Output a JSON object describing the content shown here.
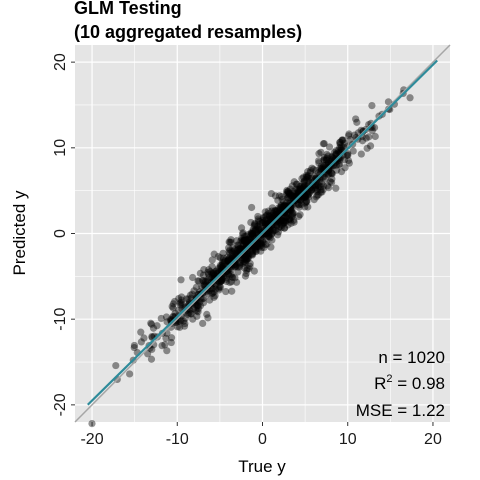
{
  "chart_data": {
    "type": "scatter",
    "title_line1": "GLM Testing",
    "title_line2": "(10 aggregated resamples)",
    "xlabel": "True y",
    "ylabel": "Predicted y",
    "xlim": [
      -22,
      22
    ],
    "ylim": [
      -22,
      22
    ],
    "x_ticks": [
      -20,
      -10,
      0,
      10,
      20
    ],
    "y_ticks": [
      -20,
      -10,
      0,
      10,
      20
    ],
    "x_tick_labels": [
      "-20",
      "-10",
      "0",
      "10",
      "20"
    ],
    "y_tick_labels": [
      "-20",
      "-10",
      "0",
      "10",
      "20"
    ],
    "grid": true,
    "n_points": 1020,
    "identity_line": {
      "slope": 1,
      "intercept": 0
    },
    "fit_line": {
      "slope": 0.98,
      "intercept": 0.1
    },
    "annotation_n": "n = 1020",
    "annotation_r2_prefix": "R",
    "annotation_r2_sup": "2",
    "annotation_r2_value": " = 0.98",
    "annotation_mse": "MSE = 1.22",
    "colors": {
      "panel": "#e5e5e5",
      "grid": "#ffffff",
      "points": "#000000",
      "identity_line": "#a6a6a6",
      "fit_line": "#2e8b9a"
    }
  }
}
